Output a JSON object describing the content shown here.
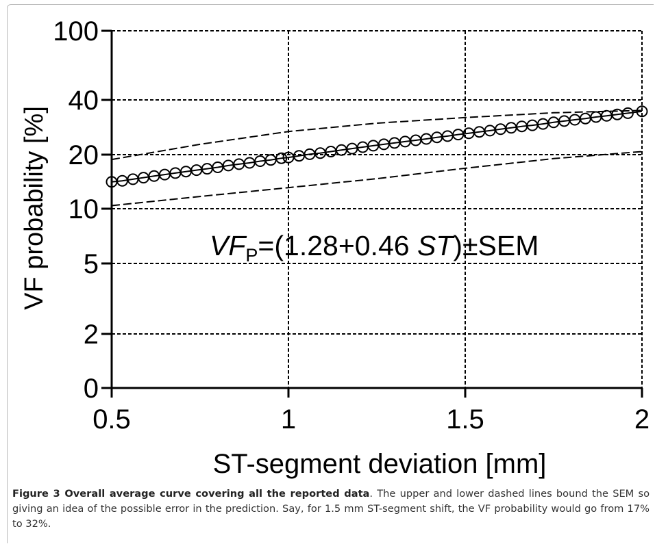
{
  "chart_data": {
    "type": "scatter",
    "xlabel": "ST-segment deviation [mm]",
    "ylabel": "VF probability [%]",
    "x_ticks": [
      0.5,
      1,
      1.5,
      2
    ],
    "x_tick_labels": [
      "0.5",
      "1",
      "1.5",
      "2"
    ],
    "y_ticks": [
      0,
      2,
      5,
      10,
      20,
      40,
      100
    ],
    "y_tick_labels": [
      "0",
      "2",
      "5",
      "10",
      "20",
      "40",
      "100"
    ],
    "xlim": [
      0.5,
      2
    ],
    "ylim": [
      0,
      100
    ],
    "grid": true,
    "annotation": {
      "parts": [
        {
          "text": "VF",
          "style": "italic"
        },
        {
          "text": "P",
          "style": "sub"
        },
        {
          "text": "=(1.28+0.46 ",
          "style": "normal"
        },
        {
          "text": "ST",
          "style": "italic"
        },
        {
          "text": ")±SEM",
          "style": "normal"
        }
      ]
    },
    "series": [
      {
        "type": "scatter-circles",
        "x": [
          0.5,
          0.53,
          0.56,
          0.59,
          0.62,
          0.65,
          0.68,
          0.71,
          0.74,
          0.77,
          0.8,
          0.83,
          0.86,
          0.89,
          0.92,
          0.95,
          0.98,
          1.0,
          1.03,
          1.06,
          1.09,
          1.12,
          1.15,
          1.18,
          1.21,
          1.24,
          1.27,
          1.3,
          1.33,
          1.36,
          1.39,
          1.42,
          1.45,
          1.48,
          1.51,
          1.54,
          1.57,
          1.6,
          1.63,
          1.66,
          1.69,
          1.72,
          1.75,
          1.78,
          1.81,
          1.84,
          1.87,
          1.9,
          1.93,
          1.96,
          2.0
        ],
        "y": [
          14.1,
          14.3,
          14.6,
          14.9,
          15.2,
          15.5,
          15.8,
          16.1,
          16.4,
          16.7,
          17.0,
          17.4,
          17.7,
          18.0,
          18.4,
          18.7,
          19.1,
          19.3,
          19.7,
          20.1,
          20.4,
          20.8,
          21.2,
          21.6,
          22.0,
          22.4,
          22.8,
          23.2,
          23.6,
          24.0,
          24.4,
          24.9,
          25.3,
          25.8,
          26.2,
          26.7,
          27.1,
          27.6,
          28.1,
          28.6,
          29.0,
          29.5,
          30.1,
          30.6,
          31.1,
          31.6,
          32.2,
          32.7,
          33.3,
          33.8,
          34.6
        ]
      },
      {
        "type": "dashed-line",
        "x": [
          0.5,
          0.75,
          1.0,
          1.25,
          1.5,
          1.75,
          2.0
        ],
        "y": [
          18.8,
          22.8,
          26.8,
          29.8,
          32.0,
          34.0,
          35.0
        ]
      },
      {
        "type": "dashed-line",
        "x": [
          0.5,
          0.75,
          1.0,
          1.25,
          1.5,
          1.75,
          2.0
        ],
        "y": [
          10.4,
          11.7,
          13.1,
          14.7,
          16.8,
          19.0,
          20.8
        ]
      }
    ]
  },
  "caption": {
    "title": "Figure 3 Overall average curve covering all the reported data",
    "text": ". The upper and lower dashed lines bound the SEM so giving an idea of the possible error in the prediction. Say, for 1.5 mm ST-segment shift, the VF probability would go from 17% to 32%."
  }
}
